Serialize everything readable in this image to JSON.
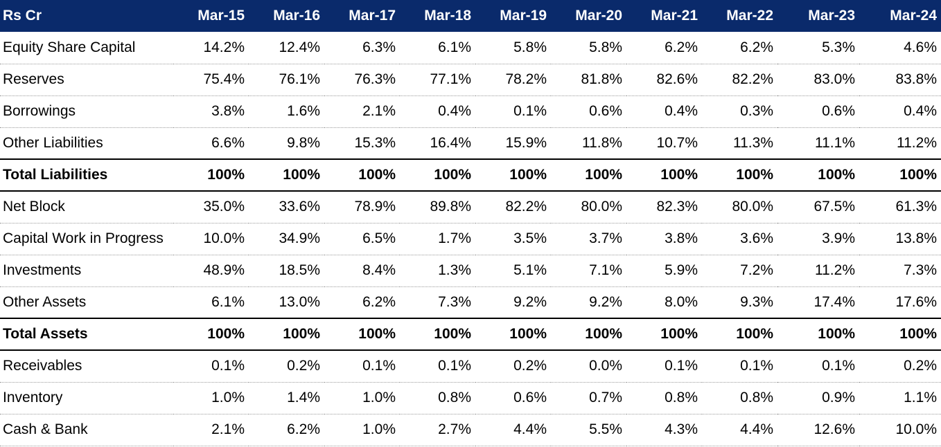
{
  "table": {
    "header": [
      "Rs Cr",
      "Mar-15",
      "Mar-16",
      "Mar-17",
      "Mar-18",
      "Mar-19",
      "Mar-20",
      "Mar-21",
      "Mar-22",
      "Mar-23",
      "Mar-24"
    ],
    "rows": [
      {
        "label": "Equity Share Capital",
        "values": [
          "14.2%",
          "12.4%",
          "6.3%",
          "6.1%",
          "5.8%",
          "5.8%",
          "6.2%",
          "6.2%",
          "5.3%",
          "4.6%"
        ]
      },
      {
        "label": "Reserves",
        "values": [
          "75.4%",
          "76.1%",
          "76.3%",
          "77.1%",
          "78.2%",
          "81.8%",
          "82.6%",
          "82.2%",
          "83.0%",
          "83.8%"
        ]
      },
      {
        "label": "Borrowings",
        "values": [
          "3.8%",
          "1.6%",
          "2.1%",
          "0.4%",
          "0.1%",
          "0.6%",
          "0.4%",
          "0.3%",
          "0.6%",
          "0.4%"
        ]
      },
      {
        "label": "Other Liabilities",
        "values": [
          "6.6%",
          "9.8%",
          "15.3%",
          "16.4%",
          "15.9%",
          "11.8%",
          "10.7%",
          "11.3%",
          "11.1%",
          "11.2%"
        ]
      },
      {
        "label": "Total Liabilities",
        "values": [
          "100%",
          "100%",
          "100%",
          "100%",
          "100%",
          "100%",
          "100%",
          "100%",
          "100%",
          "100%"
        ]
      },
      {
        "label": "Net Block",
        "values": [
          "35.0%",
          "33.6%",
          "78.9%",
          "89.8%",
          "82.2%",
          "80.0%",
          "82.3%",
          "80.0%",
          "67.5%",
          "61.3%"
        ]
      },
      {
        "label": "Capital Work in Progress",
        "values": [
          "10.0%",
          "34.9%",
          "6.5%",
          "1.7%",
          "3.5%",
          "3.7%",
          "3.8%",
          "3.6%",
          "3.9%",
          "13.8%"
        ]
      },
      {
        "label": "Investments",
        "values": [
          "48.9%",
          "18.5%",
          "8.4%",
          "1.3%",
          "5.1%",
          "7.1%",
          "5.9%",
          "7.2%",
          "11.2%",
          "7.3%"
        ]
      },
      {
        "label": "Other Assets",
        "values": [
          "6.1%",
          "13.0%",
          "6.2%",
          "7.3%",
          "9.2%",
          "9.2%",
          "8.0%",
          "9.3%",
          "17.4%",
          "17.6%"
        ]
      },
      {
        "label": "Total Assets",
        "values": [
          "100%",
          "100%",
          "100%",
          "100%",
          "100%",
          "100%",
          "100%",
          "100%",
          "100%",
          "100%"
        ]
      },
      {
        "label": "Receivables",
        "values": [
          "0.1%",
          "0.2%",
          "0.1%",
          "0.1%",
          "0.2%",
          "0.0%",
          "0.1%",
          "0.1%",
          "0.1%",
          "0.2%"
        ]
      },
      {
        "label": "Inventory",
        "values": [
          "1.0%",
          "1.4%",
          "1.0%",
          "0.8%",
          "0.6%",
          "0.7%",
          "0.8%",
          "0.8%",
          "0.9%",
          "1.1%"
        ]
      },
      {
        "label": "Cash & Bank",
        "values": [
          "2.1%",
          "6.2%",
          "1.0%",
          "2.7%",
          "4.4%",
          "5.5%",
          "4.3%",
          "4.4%",
          "12.6%",
          "10.0%"
        ]
      }
    ]
  }
}
